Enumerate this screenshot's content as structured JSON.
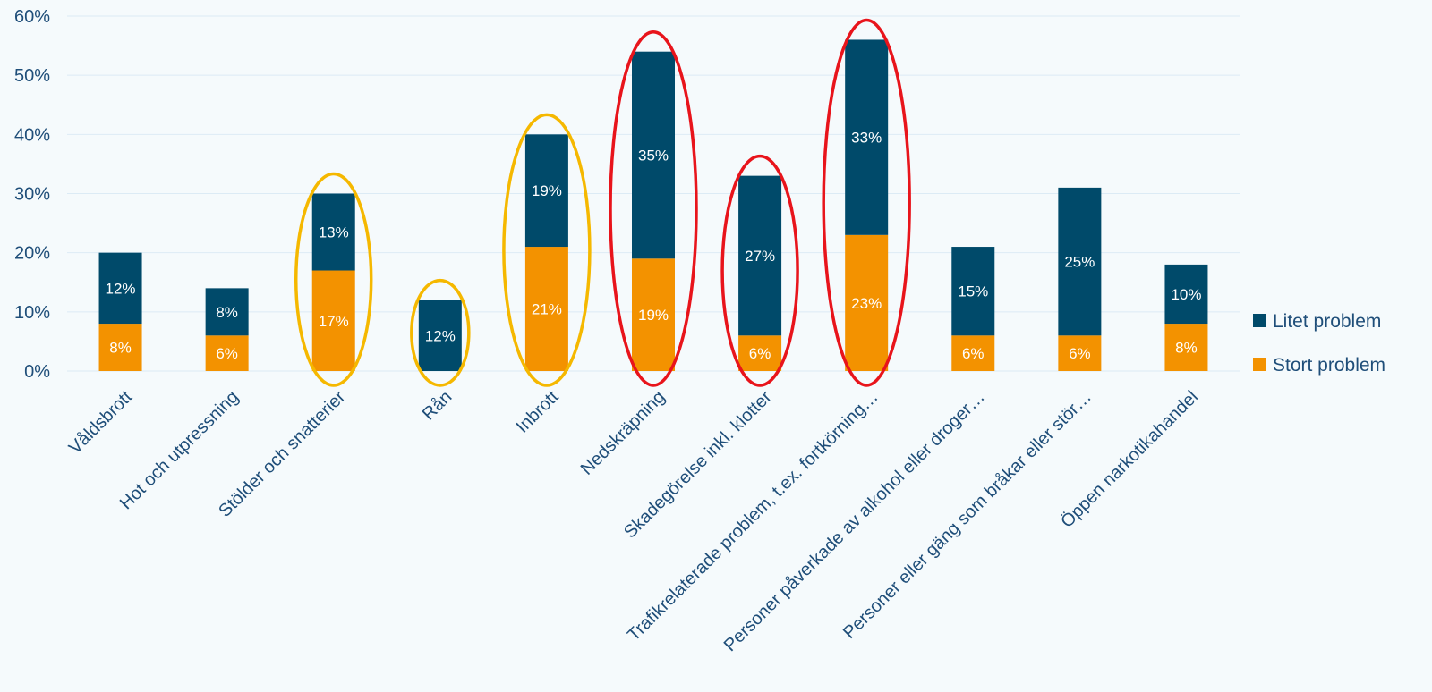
{
  "chart_data": {
    "type": "bar",
    "stacked": true,
    "categories": [
      "Våldsbrott",
      "Hot och utpressning",
      "Stölder och snatterier",
      "Rån",
      "Inbrott",
      "Nedskräpning",
      "Skadegörelse inkl. klotter",
      "Trafikrelaterade problem, t.ex. fortkörning…",
      "Personer påverkade av alkohol eller droger…",
      "Personer eller gäng som bråkar eller stör…",
      "Öppen narkotikahandel"
    ],
    "series": [
      {
        "name": "Stort problem",
        "color": "#f39200",
        "values": [
          8,
          6,
          17,
          0,
          21,
          19,
          6,
          23,
          6,
          6,
          8
        ],
        "labels": [
          "8%",
          "6%",
          "17%",
          "",
          "21%",
          "19%",
          "6%",
          "23%",
          "6%",
          "6%",
          "8%"
        ]
      },
      {
        "name": "Litet problem",
        "color": "#004a6a",
        "values": [
          12,
          8,
          13,
          12,
          19,
          35,
          27,
          33,
          15,
          25,
          10
        ],
        "labels": [
          "12%",
          "8%",
          "13%",
          "12%",
          "19%",
          "35%",
          "27%",
          "33%",
          "15%",
          "25%",
          "10%"
        ]
      }
    ],
    "yticks": [
      "0%",
      "10%",
      "20%",
      "30%",
      "40%",
      "50%",
      "60%"
    ],
    "ylim": [
      0,
      60
    ],
    "grid": true,
    "legend_position": "right",
    "highlights": [
      {
        "category_index": 2,
        "color": "#f5b800"
      },
      {
        "category_index": 3,
        "color": "#f5b800"
      },
      {
        "category_index": 4,
        "color": "#f5b800"
      },
      {
        "category_index": 5,
        "color": "#e8141b"
      },
      {
        "category_index": 6,
        "color": "#e8141b"
      },
      {
        "category_index": 7,
        "color": "#e8141b"
      }
    ]
  }
}
